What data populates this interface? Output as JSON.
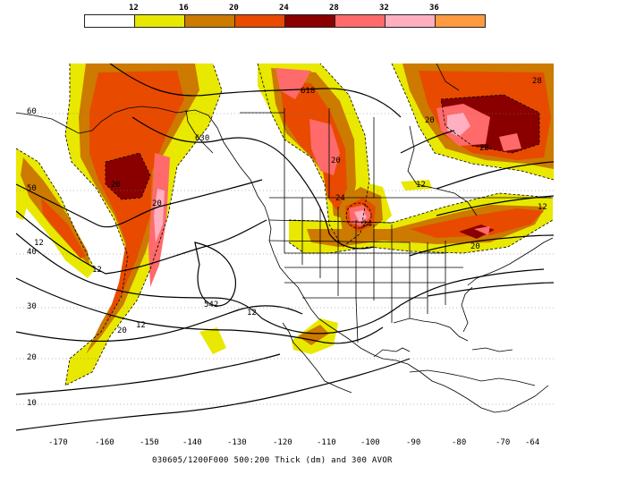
{
  "legend": {
    "thresholds": [
      "12",
      "16",
      "20",
      "24",
      "28",
      "32",
      "36"
    ],
    "colors": [
      "#ffffff",
      "#e8e800",
      "#cc7a00",
      "#e84a00",
      "#8a0000",
      "#ff6a6a",
      "#ffb0c0",
      "#ff9a40"
    ]
  },
  "axes": {
    "lon_labels": [
      "-170",
      "-160",
      "-150",
      "-140",
      "-130",
      "-120",
      "-110",
      "-100",
      "-90",
      "-80",
      "-70",
      "-64"
    ],
    "lat_labels": [
      "60",
      "50",
      "40",
      "30",
      "20",
      "10"
    ]
  },
  "contour_labels": [
    "618",
    "630",
    "542",
    "12",
    "12",
    "12",
    "12",
    "12",
    "12",
    "20",
    "20",
    "20",
    "20",
    "20",
    "20",
    "28",
    "28",
    "24",
    "24"
  ],
  "caption": "030605/1200F000 500:200 Thick (dm) and 300 AVOR"
}
